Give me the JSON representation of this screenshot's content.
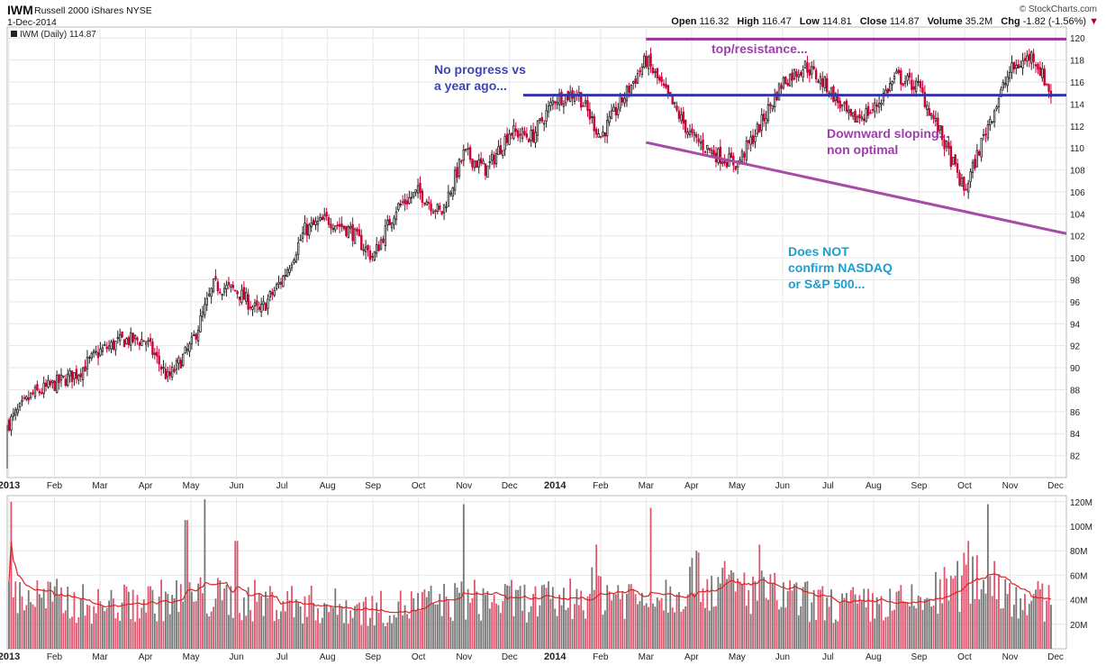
{
  "header": {
    "symbol": "IWM",
    "name": "Russell 2000 iShares",
    "exchange": "NYSE",
    "date": "1-Dec-2014",
    "brand": "© StockCharts.com",
    "quote": {
      "open_label": "Open",
      "open": "116.32",
      "high_label": "High",
      "high": "116.47",
      "low_label": "Low",
      "low": "114.81",
      "close_label": "Close",
      "close": "114.87",
      "volume_label": "Volume",
      "volume": "35.2M",
      "chg_label": "Chg",
      "chg": "-1.82 (-1.56%)",
      "chg_arrow": "▼"
    }
  },
  "colors": {
    "up_candle": "#222222",
    "down_candle": "#cc0033",
    "resistance_line": "#993399",
    "support_line": "#3333aa",
    "trend_line": "#a64ca6",
    "volume_up": "#777777",
    "volume_down": "#e0566e",
    "volume_ma": "#dd2222",
    "annotation_blue": "#3d44b5",
    "annotation_purple": "#9b40a8",
    "annotation_cyan": "#1a9fd0",
    "grid": "#e6e6e6"
  },
  "annotations": {
    "no_progress": [
      "No progress vs",
      "a year ago..."
    ],
    "top_resistance": "top/resistance...",
    "downward": [
      "Downward sloping...",
      "non optimal"
    ],
    "not_confirm": [
      "Does NOT",
      "confirm NASDAQ",
      "or S&P 500..."
    ]
  },
  "chart_data": [
    {
      "type": "candlestick",
      "legend": "IWM (Daily) 114.87",
      "ylim": [
        80,
        121
      ],
      "y_ticks": [
        82,
        84,
        86,
        88,
        90,
        92,
        94,
        96,
        98,
        100,
        102,
        104,
        106,
        108,
        110,
        112,
        114,
        116,
        118,
        120
      ],
      "x_labels": [
        "2013",
        "Feb",
        "Mar",
        "Apr",
        "May",
        "Jun",
        "Jul",
        "Aug",
        "Sep",
        "Oct",
        "Nov",
        "Dec",
        "2014",
        "Feb",
        "Mar",
        "Apr",
        "May",
        "Jun",
        "Jul",
        "Aug",
        "Sep",
        "Oct",
        "Nov",
        "Dec"
      ],
      "grid": true,
      "close_anchors": [
        {
          "month": 0.0,
          "close": 85.0
        },
        {
          "month": 0.5,
          "close": 87.5
        },
        {
          "month": 1.0,
          "close": 88.5
        },
        {
          "month": 1.5,
          "close": 89.5
        },
        {
          "month": 2.0,
          "close": 91.5
        },
        {
          "month": 2.5,
          "close": 92.5
        },
        {
          "month": 3.0,
          "close": 92.5
        },
        {
          "month": 3.5,
          "close": 89.0
        },
        {
          "month": 4.0,
          "close": 92.0
        },
        {
          "month": 4.5,
          "close": 97.5
        },
        {
          "month": 5.0,
          "close": 97.0
        },
        {
          "month": 5.5,
          "close": 95.0
        },
        {
          "month": 6.0,
          "close": 98.0
        },
        {
          "month": 6.5,
          "close": 102.5
        },
        {
          "month": 7.0,
          "close": 103.5
        },
        {
          "month": 7.5,
          "close": 102.5
        },
        {
          "month": 8.0,
          "close": 100.0
        },
        {
          "month": 8.5,
          "close": 104.5
        },
        {
          "month": 9.0,
          "close": 106.0
        },
        {
          "month": 9.5,
          "close": 104.0
        },
        {
          "month": 10.0,
          "close": 109.5
        },
        {
          "month": 10.5,
          "close": 108.0
        },
        {
          "month": 11.0,
          "close": 111.5
        },
        {
          "month": 11.5,
          "close": 111.0
        },
        {
          "month": 12.0,
          "close": 114.5
        },
        {
          "month": 12.5,
          "close": 115.0
        },
        {
          "month": 13.0,
          "close": 111.0
        },
        {
          "month": 13.5,
          "close": 114.5
        },
        {
          "month": 14.0,
          "close": 118.0
        },
        {
          "month": 14.5,
          "close": 114.5
        },
        {
          "month": 15.0,
          "close": 111.0
        },
        {
          "month": 15.5,
          "close": 109.5
        },
        {
          "month": 16.0,
          "close": 108.5
        },
        {
          "month": 16.5,
          "close": 112.0
        },
        {
          "month": 17.0,
          "close": 116.0
        },
        {
          "month": 17.5,
          "close": 117.5
        },
        {
          "month": 18.0,
          "close": 115.5
        },
        {
          "month": 18.5,
          "close": 112.5
        },
        {
          "month": 19.0,
          "close": 113.5
        },
        {
          "month": 19.5,
          "close": 116.5
        },
        {
          "month": 20.0,
          "close": 115.5
        },
        {
          "month": 20.5,
          "close": 111.0
        },
        {
          "month": 21.0,
          "close": 106.0
        },
        {
          "month": 21.5,
          "close": 112.0
        },
        {
          "month": 22.0,
          "close": 117.0
        },
        {
          "month": 22.5,
          "close": 118.5
        },
        {
          "month": 22.9,
          "close": 114.9
        }
      ],
      "lines": [
        {
          "name": "resistance",
          "from": {
            "month": 14.0,
            "value": 119.9
          },
          "to": {
            "month": 23.0,
            "value": 119.9
          }
        },
        {
          "name": "support",
          "from": {
            "month": 11.3,
            "value": 114.8
          },
          "to": {
            "month": 23.0,
            "value": 114.8
          }
        },
        {
          "name": "downtrend",
          "from": {
            "month": 14.0,
            "value": 110.5
          },
          "to": {
            "month": 23.0,
            "value": 102.2
          }
        }
      ]
    },
    {
      "type": "bar",
      "series_label": "Volume",
      "ylim": [
        0,
        125
      ],
      "y_ticks": [
        "20M",
        "40M",
        "60M",
        "80M",
        "100M",
        "120M"
      ],
      "x_labels": [
        "2013",
        "Feb",
        "Mar",
        "Apr",
        "May",
        "Jun",
        "Jul",
        "Aug",
        "Sep",
        "Oct",
        "Nov",
        "Dec",
        "2014",
        "Feb",
        "Mar",
        "Apr",
        "May",
        "Jun",
        "Jul",
        "Aug",
        "Sep",
        "Oct",
        "Nov",
        "Dec"
      ],
      "volume_anchors_millions": [
        {
          "month": 0.0,
          "vol": 45
        },
        {
          "month": 2.0,
          "vol": 35
        },
        {
          "month": 4.0,
          "vol": 42
        },
        {
          "month": 6.0,
          "vol": 38
        },
        {
          "month": 8.0,
          "vol": 32
        },
        {
          "month": 10.0,
          "vol": 40
        },
        {
          "month": 12.0,
          "vol": 38
        },
        {
          "month": 13.0,
          "vol": 48
        },
        {
          "month": 14.0,
          "vol": 40
        },
        {
          "month": 15.0,
          "vol": 55
        },
        {
          "month": 16.0,
          "vol": 50
        },
        {
          "month": 17.0,
          "vol": 42
        },
        {
          "month": 18.0,
          "vol": 36
        },
        {
          "month": 19.0,
          "vol": 35
        },
        {
          "month": 20.0,
          "vol": 38
        },
        {
          "month": 21.0,
          "vol": 55
        },
        {
          "month": 21.5,
          "vol": 62
        },
        {
          "month": 22.0,
          "vol": 45
        },
        {
          "month": 23.0,
          "vol": 35
        }
      ],
      "spikes_millions": [
        {
          "month": 0.05,
          "vol": 120
        },
        {
          "month": 4.3,
          "vol": 122
        },
        {
          "month": 3.9,
          "vol": 105
        },
        {
          "month": 10.0,
          "vol": 118
        },
        {
          "month": 14.1,
          "vol": 115
        },
        {
          "month": 21.5,
          "vol": 118
        },
        {
          "month": 15.1,
          "vol": 80
        },
        {
          "month": 16.5,
          "vol": 85
        },
        {
          "month": 21.1,
          "vol": 88
        },
        {
          "month": 5.0,
          "vol": 88
        },
        {
          "month": 12.9,
          "vol": 85
        }
      ]
    }
  ]
}
